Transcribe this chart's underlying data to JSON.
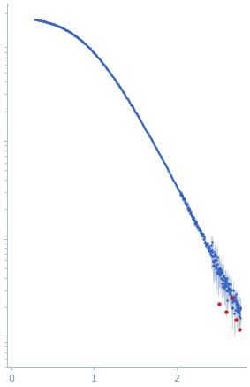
{
  "title": "",
  "xlabel": "",
  "ylabel": "",
  "x_ticks": [
    0,
    1,
    2
  ],
  "xlim": [
    -0.05,
    2.85
  ],
  "ylim_log": [
    -3,
    1.3
  ],
  "dot_color": "#3060c0",
  "dot_color_outlier": "#cc2222",
  "error_color": "#aabbd8",
  "dot_size": 2.5,
  "background_color": "#ffffff",
  "spine_color": "#aabbd8",
  "tick_color": "#aabbd8",
  "tick_label_color": "#7090c0"
}
